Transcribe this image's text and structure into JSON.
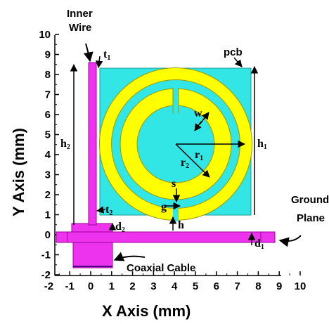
{
  "axes": {
    "x_title": "X Axis (mm)",
    "y_title": "Y Axis (mm)",
    "x_ticks": [
      -2,
      -1,
      0,
      1,
      2,
      3,
      4,
      5,
      6,
      7,
      8,
      9,
      10
    ],
    "y_ticks": [
      -2,
      -1,
      0,
      1,
      2,
      3,
      4,
      5,
      6,
      7,
      8,
      9,
      10
    ]
  },
  "callouts": {
    "inner_wire_line1": "Inner",
    "inner_wire_line2": "Wire",
    "pcb": "pcb",
    "ground_plane_line1": "Ground",
    "ground_plane_line2": "Plane",
    "coaxial_cable": "Coaxial Cable"
  },
  "symbols": {
    "t1": {
      "base": "t",
      "sub": "1"
    },
    "t2": {
      "base": "t",
      "sub": "2"
    },
    "h1": {
      "base": "h",
      "sub": "1"
    },
    "h2": {
      "base": "h",
      "sub": "2"
    },
    "d1": {
      "base": "d",
      "sub": "1"
    },
    "d2": {
      "base": "d",
      "sub": "2"
    },
    "r1": {
      "base": "r",
      "sub": "1"
    },
    "r2": {
      "base": "r",
      "sub": "2"
    },
    "w": "w",
    "s": "s",
    "g": "g",
    "h": "h"
  },
  "colors": {
    "pcb": "#33e6e6",
    "ring": "#ffff00",
    "ring_edge": "#9a9a00",
    "wire": "#ee33ee",
    "wire_edge": "#990099",
    "ink": "#000000"
  }
}
